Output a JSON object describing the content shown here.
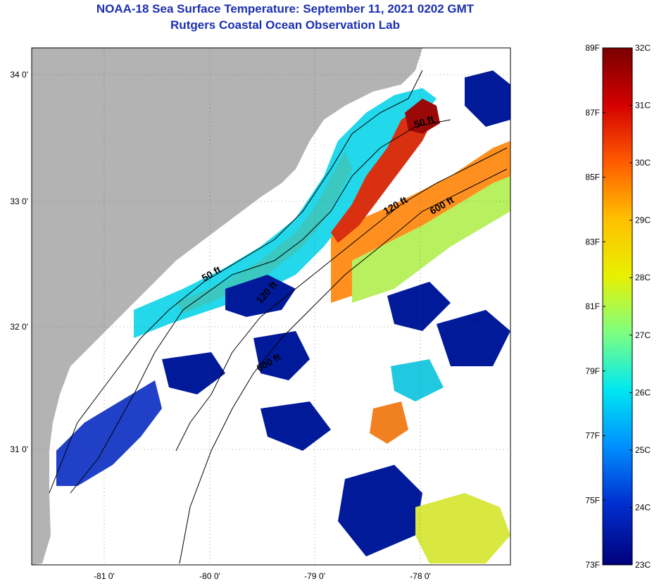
{
  "title": {
    "line1": "NOAA-18 Sea Surface Temperature:  September 11, 2021 0202 GMT",
    "line2": "Rutgers Coastal Ocean Observation Lab"
  },
  "map": {
    "lon_ticks": [
      "-81 0'",
      "-80 0'",
      "-79 0'",
      "-78 0'"
    ],
    "lat_ticks": [
      "34 0'",
      "33 0'",
      "32 0'",
      "31 0'"
    ],
    "contour_labels": [
      "50 ft",
      "120 ft",
      "600 ft",
      "50 ft",
      "120 ft",
      "600 ft"
    ],
    "colors": {
      "land": "#b3b3b3",
      "no_data": "#ffffff",
      "coast": "#000000"
    }
  },
  "colorbar": {
    "fahrenheit": [
      "89F",
      "87F",
      "85F",
      "83F",
      "81F",
      "79F",
      "77F",
      "75F",
      "73F"
    ],
    "celsius": [
      "32C",
      "31C",
      "30C",
      "29C",
      "28C",
      "27C",
      "26C",
      "25C",
      "24C",
      "23C"
    ],
    "gradient": [
      "#7a0000",
      "#d40000",
      "#ff5a00",
      "#ffc000",
      "#e8f000",
      "#80ff80",
      "#00e8f0",
      "#0090ff",
      "#0030d0",
      "#00007a"
    ]
  }
}
